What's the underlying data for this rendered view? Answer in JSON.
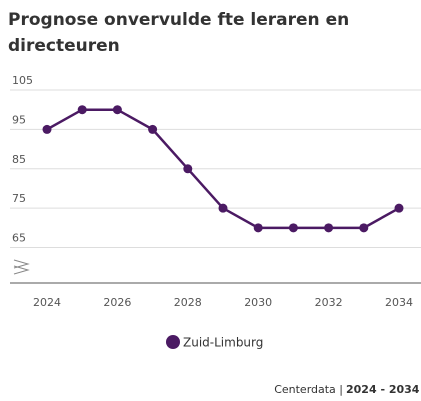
{
  "chart_data": {
    "type": "line",
    "title": [
      "Prognose onvervulde fte leraren en",
      "directeuren"
    ],
    "x": [
      2024,
      2025,
      2026,
      2027,
      2028,
      2029,
      2030,
      2031,
      2032,
      2033,
      2034
    ],
    "series": [
      {
        "name": "Zuid-Limburg",
        "color": "#4b1a63",
        "values": [
          95,
          100,
          100,
          95,
          85,
          75,
          70,
          70,
          70,
          70,
          75
        ]
      }
    ],
    "xlim": [
      2024,
      2034
    ],
    "xticks": [
      2024,
      2026,
      2028,
      2030,
      2032,
      2034
    ],
    "ylim": [
      56,
      105
    ],
    "yticks": [
      65,
      75,
      85,
      95,
      105
    ],
    "grid": true,
    "source": "Centerdata |",
    "period": "2024 - 2034"
  }
}
